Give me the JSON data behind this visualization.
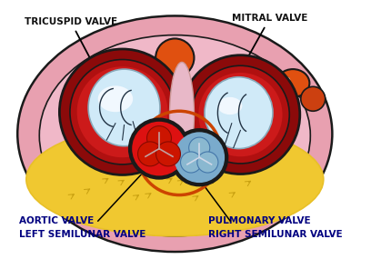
{
  "bg_color": "#ffffff",
  "labels": {
    "tricuspid": "TRICUSPID VALVE",
    "mitral": "MITRAL VALVE",
    "aortic_line1": "AORTIC VALVE",
    "aortic_line2": "LEFT SEMILUNAR VALVE",
    "pulmonary_line1": "PULMONARY VALVE",
    "pulmonary_line2": "RIGHT SEMILUNAR VALVE"
  },
  "colors": {
    "outer_pink": "#e8a0b0",
    "inner_pink": "#f0b8c8",
    "dark_red": "#8b0a0a",
    "medium_red": "#b01010",
    "crimson": "#cc1a1a",
    "light_blue_valve": "#d0eaf8",
    "white_highlight": "#f5faff",
    "bright_red": "#dd1111",
    "steel_blue": "#7aabcc",
    "blue_grey": "#8ab8d0",
    "yellow_fat": "#f0c830",
    "yellow_fat2": "#e8c028",
    "pink_sep": "#e8b8c8",
    "orange_bump": "#e05010",
    "orange_bump2": "#cc4010",
    "label_color": "#000080",
    "dark_outline": "#1a1a1a"
  },
  "figsize": [
    4.08,
    3.07
  ],
  "dpi": 100
}
